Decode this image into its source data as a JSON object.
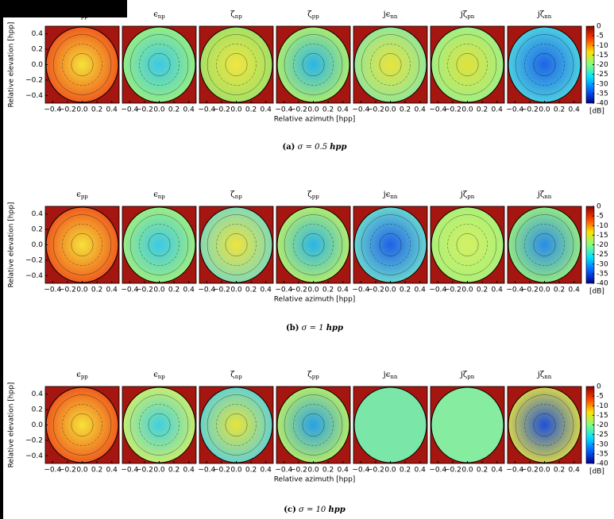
{
  "chart_data": [
    {
      "type": "contour",
      "caption": {
        "label": "(a)",
        "equation": "σ = 0.5",
        "unit": "hpp"
      },
      "xlabel": "Relative azimuth [hpp]",
      "ylabel": "Relative elevation [hpp]",
      "xlim": [
        -0.5,
        0.5
      ],
      "ylim": [
        -0.5,
        0.5
      ],
      "xticks": [
        {
          "value": -0.4,
          "label": "−0.4"
        },
        {
          "value": -0.2,
          "label": "−0.2"
        },
        {
          "value": 0,
          "label": "0.0"
        },
        0.2,
        0.4
      ],
      "yticks": [
        0.4,
        0.2,
        {
          "value": 0,
          "label": "0.0"
        },
        {
          "value": -0.2,
          "label": "−0.2"
        },
        {
          "value": -0.4,
          "label": "−0.4"
        }
      ],
      "background": "#a4160f",
      "panels": [
        {
          "symbol": "ϵ",
          "sub": "pp",
          "colors": [
            "#f5e33a",
            "#ef4f1c"
          ]
        },
        {
          "symbol": "ϵ",
          "sub": "np",
          "colors": [
            "#3cc8e6",
            "#9ef07a"
          ]
        },
        {
          "symbol": "ζ",
          "sub": "np",
          "colors": [
            "#f0e640",
            "#9ee06a"
          ]
        },
        {
          "symbol": "ζ",
          "sub": "pp",
          "colors": [
            "#2ab4e8",
            "#b8f064"
          ]
        },
        {
          "symbol": "jϵ",
          "sub": "nn",
          "colors": [
            "#e8e43c",
            "#8ce6a0"
          ]
        },
        {
          "symbol": "jζ",
          "sub": "pn",
          "colors": [
            "#e0e23c",
            "#9af08c"
          ]
        },
        {
          "symbol": "jζ",
          "sub": "nn",
          "colors": [
            "#1e64e6",
            "#50d8e0"
          ]
        }
      ],
      "colorbar": {
        "lim": [
          -40,
          0
        ],
        "ticks": [
          0,
          -5,
          -10,
          -15,
          -20,
          -25,
          -30,
          -35,
          -40
        ],
        "label": "[dB]",
        "colors": [
          "#00008f",
          "#0060ff",
          "#00e0ff",
          "#80ff80",
          "#ffe000",
          "#ff4000",
          "#8f0000"
        ]
      }
    },
    {
      "type": "contour",
      "caption": {
        "label": "(b)",
        "equation": "σ = 1",
        "unit": "hpp"
      },
      "xlabel": "Relative azimuth [hpp]",
      "ylabel": "Relative elevation [hpp]",
      "xlim": [
        -0.5,
        0.5
      ],
      "ylim": [
        -0.5,
        0.5
      ],
      "xticks": [
        {
          "value": -0.4,
          "label": "−0.4"
        },
        {
          "value": -0.2,
          "label": "−0.2"
        },
        {
          "value": 0,
          "label": "0.0"
        },
        0.2,
        0.4
      ],
      "yticks": [
        0.4,
        0.2,
        {
          "value": 0,
          "label": "0.0"
        },
        {
          "value": -0.2,
          "label": "−0.2"
        },
        {
          "value": -0.4,
          "label": "−0.4"
        }
      ],
      "background": "#a4160f",
      "panels": [
        {
          "symbol": "ϵ",
          "sub": "pp",
          "colors": [
            "#f5e33a",
            "#ef4f1c"
          ]
        },
        {
          "symbol": "ϵ",
          "sub": "np",
          "colors": [
            "#3cc8e6",
            "#a6f078"
          ]
        },
        {
          "symbol": "ζ",
          "sub": "np",
          "colors": [
            "#eee43e",
            "#7ad8c0"
          ]
        },
        {
          "symbol": "ζ",
          "sub": "pp",
          "colors": [
            "#2ab4e8",
            "#c0f062"
          ]
        },
        {
          "symbol": "jϵ",
          "sub": "nn",
          "colors": [
            "#2060e6",
            "#6ee0cc"
          ]
        },
        {
          "symbol": "jζ",
          "sub": "pn",
          "colors": [
            "#d4f064",
            "#a8f07a"
          ]
        },
        {
          "symbol": "jζ",
          "sub": "nn",
          "colors": [
            "#2a8ce8",
            "#9ef07a"
          ]
        }
      ],
      "colorbar": {
        "lim": [
          -40,
          0
        ],
        "ticks": [
          0,
          -5,
          -10,
          -15,
          -20,
          -25,
          -30,
          -35,
          -40
        ],
        "label": "[dB]",
        "colors": [
          "#00008f",
          "#0060ff",
          "#00e0ff",
          "#80ff80",
          "#ffe000",
          "#ff4000",
          "#8f0000"
        ]
      }
    },
    {
      "type": "contour",
      "caption": {
        "label": "(c)",
        "equation": "σ = 10",
        "unit": "hpp"
      },
      "xlabel": "Relative azimuth [hpp]",
      "ylabel": "Relative elevation [hpp]",
      "xlim": [
        -0.5,
        0.5
      ],
      "ylim": [
        -0.5,
        0.5
      ],
      "xticks": [
        {
          "value": -0.4,
          "label": "−0.4"
        },
        {
          "value": -0.2,
          "label": "−0.2"
        },
        {
          "value": 0,
          "label": "0.0"
        },
        0.2,
        0.4
      ],
      "yticks": [
        0.4,
        0.2,
        {
          "value": 0,
          "label": "0.0"
        },
        {
          "value": -0.2,
          "label": "−0.2"
        },
        {
          "value": -0.4,
          "label": "−0.4"
        }
      ],
      "background": "#a4160f",
      "panels": [
        {
          "symbol": "ϵ",
          "sub": "pp",
          "colors": [
            "#f5e33a",
            "#ef4f1c"
          ]
        },
        {
          "symbol": "ϵ",
          "sub": "np",
          "colors": [
            "#40d0e0",
            "#d4f064"
          ]
        },
        {
          "symbol": "ζ",
          "sub": "np",
          "colors": [
            "#e8e43a",
            "#5ad0dc"
          ]
        },
        {
          "symbol": "ζ",
          "sub": "pp",
          "colors": [
            "#28a0e6",
            "#c0f060"
          ]
        },
        {
          "symbol": "jϵ",
          "sub": "nn",
          "colors": [
            "#7ae6a8",
            "#7ae6a8"
          ]
        },
        {
          "symbol": "jζ",
          "sub": "pn",
          "colors": [
            "#86eca0",
            "#86eca0"
          ]
        },
        {
          "symbol": "jζ",
          "sub": "nn",
          "colors": [
            "#1e50d8",
            "#e6e040"
          ]
        }
      ],
      "colorbar": {
        "lim": [
          -40,
          0
        ],
        "ticks": [
          0,
          -5,
          -10,
          -15,
          -20,
          -25,
          -30,
          -35,
          -40
        ],
        "label": "[dB]",
        "colors": [
          "#00008f",
          "#0060ff",
          "#00e0ff",
          "#80ff80",
          "#ffe000",
          "#ff4000",
          "#8f0000"
        ]
      }
    }
  ]
}
